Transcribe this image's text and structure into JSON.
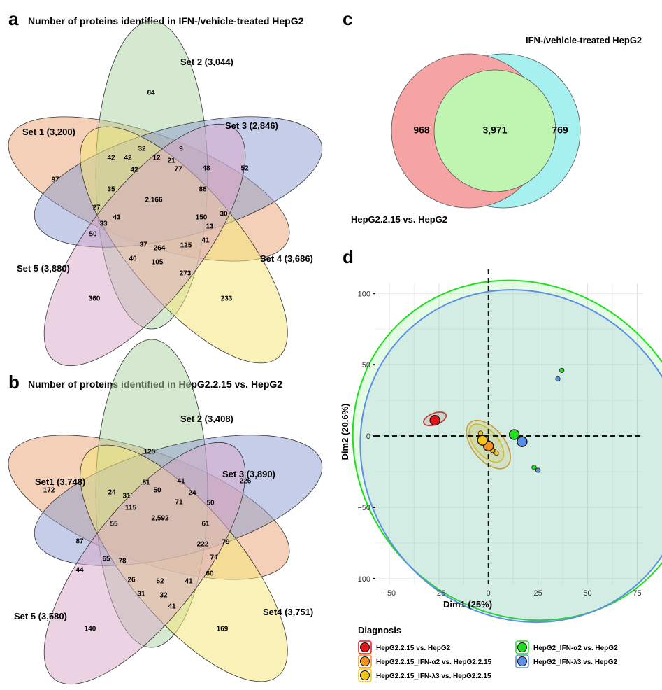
{
  "panels": {
    "a": {
      "letter": "a",
      "title": "Number of proteins identified in IFN-/vehicle-treated HepG2"
    },
    "b": {
      "letter": "b",
      "title": "Number of proteins identified in HepG2.2.15 vs. HepG2"
    },
    "c": {
      "letter": "c",
      "title": "IFN-/vehicle-treated HepG2",
      "bottom_label": "HepG2.2.15 vs. HepG2"
    },
    "d": {
      "letter": "d"
    }
  },
  "chart_data": [
    {
      "type": "venn5",
      "panel": "a",
      "title": "Number of proteins identified in IFN-/vehicle-treated HepG2",
      "sets": [
        "Set 1 (3,200)",
        "Set 2 (3,044)",
        "Set 3 (2,846)",
        "Set 4 (3,686)",
        "Set 5 (3,880)"
      ],
      "set_colors": [
        "#e9a97c",
        "#a9d3a0",
        "#8b9bd1",
        "#f4e57d",
        "#d9a8c9"
      ],
      "regions": {
        "1": 97,
        "2": 84,
        "3": 52,
        "4": 233,
        "5": 360,
        "1,2": 42,
        "2,3": 9,
        "3,4": 30,
        "4,5": 273,
        "1,5": 50,
        "1,2,3": 42,
        "2,3,4": 48,
        "3,4,5": 41,
        "1,4,5": 40,
        "1,2,5": 35,
        "1,2,3a": 32,
        "2,3,b": 12,
        "2,3,c": 21,
        "1,2,d": 42,
        "2,3,4,e": 77,
        "3,4,f": 88,
        "3,4,g": 150,
        "3,4,h": 13,
        "4,5,i": 125,
        "4,5,j": 105,
        "4,5,k": 264,
        "1,5,l": 37,
        "1,5,m": 43,
        "1,5,n": 33,
        "1,5,o": 27,
        "all": 2166
      },
      "labels_ordered": [
        "84",
        "97",
        "52",
        "233",
        "360",
        "32",
        "9",
        "42",
        "42",
        "12",
        "21",
        "42",
        "77",
        "48",
        "88",
        "35",
        "2,166",
        "150",
        "30",
        "27",
        "43",
        "13",
        "33",
        "125",
        "41",
        "50",
        "37",
        "264",
        "40",
        "105",
        "273"
      ]
    },
    {
      "type": "venn5",
      "panel": "b",
      "title": "Number of proteins identified in HepG2.2.15 vs. HepG2",
      "sets": [
        "Set1 (3,748)",
        "Set 2 (3,408)",
        "Set 3 (3,890)",
        "Set4 (3,751)",
        "Set 5 (3,580)"
      ],
      "set_colors": [
        "#e9a97c",
        "#a9d3a0",
        "#8b9bd1",
        "#f4e57d",
        "#d9a8c9"
      ],
      "labels_ordered": [
        "125",
        "172",
        "226",
        "169",
        "140",
        "51",
        "41",
        "24",
        "31",
        "50",
        "24",
        "115",
        "71",
        "50",
        "55",
        "2,592",
        "61",
        "87",
        "79",
        "222",
        "65",
        "78",
        "74",
        "44",
        "26",
        "62",
        "41",
        "60",
        "31",
        "32",
        "41"
      ]
    },
    {
      "type": "venn2",
      "panel": "c",
      "title": "IFN-/vehicle-treated HepG2",
      "sets": [
        "HepG2.2.15 vs. HepG2",
        "IFN-/vehicle-treated HepG2"
      ],
      "left_only": "968",
      "overlap": "3,971",
      "right_only": "769",
      "colors": [
        "#f5a3a3",
        "#a7f0f0",
        "#bff5b0"
      ]
    },
    {
      "type": "scatter",
      "panel": "d",
      "xlabel": "Dim1 (25%)",
      "ylabel": "Dim2 (20.6%)",
      "xlim": [
        -50,
        75
      ],
      "ylim": [
        -100,
        100
      ],
      "xticks": [
        -50,
        -25,
        0,
        25,
        50,
        75
      ],
      "yticks": [
        100,
        50,
        0,
        -50,
        -100
      ],
      "legend_title": "Diagnosis",
      "series": [
        {
          "name": "HepG2.2.15 vs. HepG2",
          "color": "#e8131a",
          "centroid": [
            -27,
            11
          ],
          "points": [
            [
              -28,
              12
            ],
            [
              -26,
              11
            ],
            [
              -27,
              10
            ]
          ],
          "ellipse": {
            "cx": -27,
            "cy": 12,
            "rx": 6,
            "ry": 4,
            "rot": -20
          }
        },
        {
          "name": "HepG2.2.15_IFN-α2 vs. HepG2.2.15",
          "color": "#f5931e",
          "centroid": [
            0,
            -7
          ],
          "points": [
            [
              -1,
              -6
            ],
            [
              1,
              -9
            ],
            [
              3,
              -11
            ]
          ],
          "ellipse": {
            "cx": 0,
            "cy": -6,
            "rx": 8,
            "ry": 20,
            "rot": -40
          }
        },
        {
          "name": "HepG2.2.15_IFN-λ3 vs. HepG2.2.15",
          "color": "#f5c518",
          "centroid": [
            -3,
            -3
          ],
          "points": [
            [
              -4,
              2
            ],
            [
              -2,
              -5
            ],
            [
              2,
              -10
            ],
            [
              4,
              -12
            ]
          ],
          "ellipse": {
            "cx": -1,
            "cy": -5,
            "rx": 6,
            "ry": 16,
            "rot": -40
          }
        },
        {
          "name": "HepG2_IFN-α2 vs. HepG2",
          "color": "#1ee01e",
          "centroid": [
            13,
            1
          ],
          "points": [
            [
              37,
              46
            ],
            [
              23,
              -22
            ]
          ],
          "ellipse": {
            "cx": 18,
            "cy": -10,
            "rx": 82,
            "ry": 125,
            "rot": -48
          }
        },
        {
          "name": "HepG2_IFN-λ3 vs. HepG2",
          "color": "#5b8ee6",
          "centroid": [
            17,
            -4
          ],
          "points": [
            [
              35,
              40
            ],
            [
              25,
              -24
            ]
          ],
          "ellipse": {
            "cx": 18,
            "cy": -14,
            "rx": 80,
            "ry": 120,
            "rot": -40
          }
        }
      ]
    }
  ]
}
